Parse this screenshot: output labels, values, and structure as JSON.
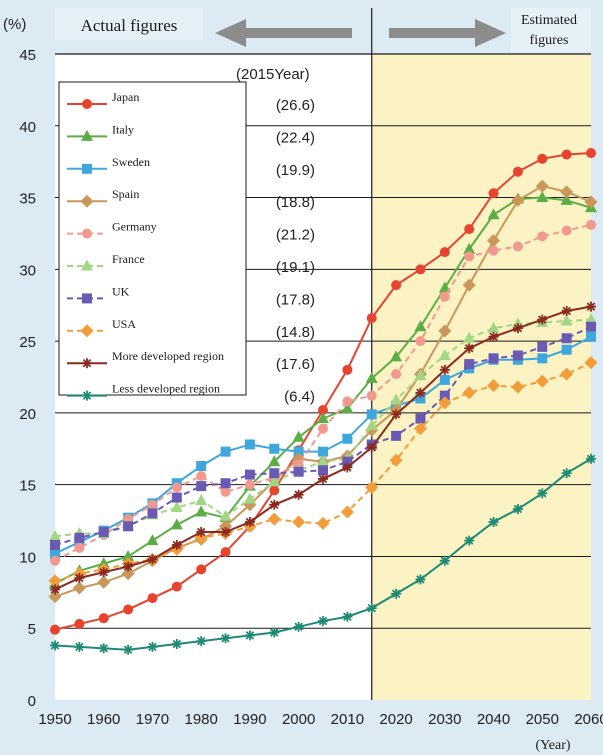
{
  "chart_data": {
    "type": "line",
    "y_unit_label": "(%)",
    "x_unit_label": "(Year)",
    "actual_label": "Actual figures",
    "estimated_label": [
      "Estimated",
      "figures"
    ],
    "legend_year_label": "(2015Year)",
    "x": [
      1950,
      1955,
      1960,
      1965,
      1970,
      1975,
      1980,
      1985,
      1990,
      1995,
      2000,
      2005,
      2010,
      2015,
      2020,
      2025,
      2030,
      2035,
      2040,
      2045,
      2050,
      2055,
      2060
    ],
    "xlim": [
      1950,
      2060
    ],
    "ylim": [
      0,
      45
    ],
    "x_ticks": [
      "1950",
      "1960",
      "1970",
      "1980",
      "1990",
      "2000",
      "2010",
      "2020",
      "2030",
      "2040",
      "2050",
      "2060"
    ],
    "y_ticks": [
      "0",
      "5",
      "10",
      "15",
      "20",
      "25",
      "30",
      "35",
      "40",
      "45"
    ],
    "projection_start": 2015,
    "colors": {
      "estimated_bg": "#fbf3c4",
      "actual_bg": "#ffffff",
      "page_bg": "#dbeaf3",
      "arrow": "#8c8c8c"
    },
    "series": [
      {
        "name": "Japan",
        "value_2015": "(26.6)",
        "color": "#e8432f",
        "marker": "circle",
        "dashed": false,
        "values": [
          4.9,
          5.3,
          5.7,
          6.3,
          7.1,
          7.9,
          9.1,
          10.3,
          12.1,
          14.6,
          17.4,
          20.2,
          23.0,
          26.6,
          28.9,
          30.0,
          31.2,
          32.8,
          35.3,
          36.8,
          37.7,
          38.0,
          38.1
        ]
      },
      {
        "name": "Italy",
        "value_2015": "(22.4)",
        "color": "#5dad47",
        "marker": "triangle",
        "dashed": false,
        "values": [
          8.1,
          9.0,
          9.5,
          10.0,
          11.1,
          12.2,
          13.1,
          12.7,
          14.9,
          16.6,
          18.3,
          19.6,
          20.3,
          22.4,
          23.9,
          26.0,
          28.7,
          31.4,
          33.8,
          34.9,
          35.0,
          34.8,
          34.3
        ]
      },
      {
        "name": "Sweden",
        "value_2015": "(19.9)",
        "color": "#3fa7dc",
        "marker": "square",
        "dashed": false,
        "values": [
          10.2,
          11.0,
          11.8,
          12.7,
          13.7,
          15.1,
          16.3,
          17.3,
          17.8,
          17.5,
          17.3,
          17.3,
          18.2,
          19.9,
          20.5,
          21.0,
          22.3,
          23.1,
          23.7,
          23.7,
          23.8,
          24.4,
          25.3
        ]
      },
      {
        "name": "Spain",
        "value_2015": "(18.8)",
        "color": "#c9975a",
        "marker": "diamond",
        "dashed": false,
        "values": [
          7.2,
          7.8,
          8.2,
          8.8,
          9.7,
          10.6,
          11.2,
          12.1,
          13.6,
          15.3,
          16.8,
          16.6,
          17.0,
          18.8,
          20.2,
          22.7,
          25.7,
          28.9,
          32.0,
          34.8,
          35.8,
          35.4,
          34.7
        ]
      },
      {
        "name": "Germany",
        "value_2015": "(21.2)",
        "color": "#f2998f",
        "marker": "circle",
        "dashed": true,
        "values": [
          9.7,
          10.6,
          11.5,
          12.6,
          13.6,
          14.8,
          15.6,
          14.5,
          15.0,
          15.5,
          16.4,
          18.9,
          20.8,
          21.2,
          22.7,
          25.0,
          28.1,
          30.9,
          31.3,
          31.6,
          32.3,
          32.7,
          33.1
        ]
      },
      {
        "name": "France",
        "value_2015": "(19.1)",
        "color": "#a3d683",
        "marker": "triangle",
        "dashed": true,
        "values": [
          11.4,
          11.6,
          11.6,
          12.1,
          12.9,
          13.4,
          13.9,
          12.8,
          14.0,
          15.2,
          16.0,
          16.6,
          16.8,
          19.1,
          20.9,
          22.6,
          24.0,
          25.2,
          25.9,
          26.2,
          26.3,
          26.4,
          26.5
        ]
      },
      {
        "name": "UK",
        "value_2015": "(17.8)",
        "color": "#6b5ab3",
        "marker": "square",
        "dashed": true,
        "values": [
          10.8,
          11.3,
          11.7,
          12.1,
          13.0,
          14.1,
          14.9,
          15.1,
          15.7,
          15.8,
          15.9,
          16.0,
          16.6,
          17.8,
          18.4,
          19.6,
          21.2,
          23.4,
          23.8,
          24.0,
          24.6,
          25.2,
          26.0
        ]
      },
      {
        "name": "USA",
        "value_2015": "(14.8)",
        "color": "#f39c3a",
        "marker": "diamond",
        "dashed": true,
        "values": [
          8.3,
          8.8,
          9.1,
          9.5,
          9.8,
          10.5,
          11.3,
          11.6,
          12.1,
          12.6,
          12.4,
          12.3,
          13.1,
          14.8,
          16.7,
          18.9,
          20.7,
          21.4,
          21.9,
          21.8,
          22.2,
          22.7,
          23.5
        ]
      },
      {
        "name": "More developed region",
        "value_2015": "(17.6)",
        "color": "#8b2a1f",
        "marker": "star",
        "dashed": false,
        "values": [
          7.7,
          8.5,
          8.9,
          9.3,
          9.8,
          10.8,
          11.7,
          11.7,
          12.4,
          13.6,
          14.3,
          15.4,
          16.2,
          17.6,
          19.9,
          21.4,
          23.0,
          24.5,
          25.3,
          25.9,
          26.5,
          27.1,
          27.4
        ]
      },
      {
        "name": "Less developed region",
        "value_2015": "(6.4)",
        "color": "#1f8a74",
        "marker": "star",
        "dashed": false,
        "values": [
          3.8,
          3.7,
          3.6,
          3.5,
          3.7,
          3.9,
          4.1,
          4.3,
          4.5,
          4.7,
          5.1,
          5.5,
          5.8,
          6.4,
          7.4,
          8.4,
          9.7,
          11.1,
          12.4,
          13.3,
          14.4,
          15.8,
          16.8
        ]
      }
    ]
  }
}
